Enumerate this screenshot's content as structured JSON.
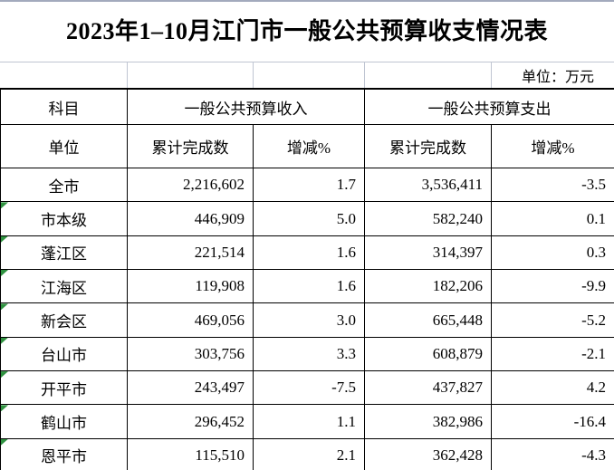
{
  "title": "2023年1–10月江门市一般公共预算收支情况表",
  "unit_note": "单位：万元",
  "colors": {
    "marker_green": "#2f9240",
    "light_grid": "#bfc5d2",
    "table_border": "#000000",
    "top_strip": "#a3aabd"
  },
  "table": {
    "header_row1": {
      "subject": "科目",
      "revenue_group": "一般公共预算收入",
      "expenditure_group": "一般公共预算支出"
    },
    "header_row2": {
      "unit": "单位",
      "revenue_total": "累计完成数",
      "revenue_change": "增减%",
      "expenditure_total": "累计完成数",
      "expenditure_change": "增减%"
    },
    "rows": [
      {
        "name": "全市",
        "revenue": "2,216,602",
        "revenue_pct": "1.7",
        "expenditure": "3,536,411",
        "expenditure_pct": "-3.5",
        "marker": false
      },
      {
        "name": "市本级",
        "revenue": "446,909",
        "revenue_pct": "5.0",
        "expenditure": "582,240",
        "expenditure_pct": "0.1",
        "marker": true
      },
      {
        "name": "蓬江区",
        "revenue": "221,514",
        "revenue_pct": "1.6",
        "expenditure": "314,397",
        "expenditure_pct": "0.3",
        "marker": true
      },
      {
        "name": "江海区",
        "revenue": "119,908",
        "revenue_pct": "1.6",
        "expenditure": "182,206",
        "expenditure_pct": "-9.9",
        "marker": true
      },
      {
        "name": "新会区",
        "revenue": "469,056",
        "revenue_pct": "3.0",
        "expenditure": "665,448",
        "expenditure_pct": "-5.2",
        "marker": true
      },
      {
        "name": "台山市",
        "revenue": "303,756",
        "revenue_pct": "3.3",
        "expenditure": "608,879",
        "expenditure_pct": "-2.1",
        "marker": true
      },
      {
        "name": "开平市",
        "revenue": "243,497",
        "revenue_pct": "-7.5",
        "expenditure": "437,827",
        "expenditure_pct": "4.2",
        "marker": true
      },
      {
        "name": "鹤山市",
        "revenue": "296,452",
        "revenue_pct": "1.1",
        "expenditure": "382,986",
        "expenditure_pct": "-16.4",
        "marker": true
      },
      {
        "name": "恩平市",
        "revenue": "115,510",
        "revenue_pct": "2.1",
        "expenditure": "362,428",
        "expenditure_pct": "-4.3",
        "marker": true
      }
    ]
  }
}
